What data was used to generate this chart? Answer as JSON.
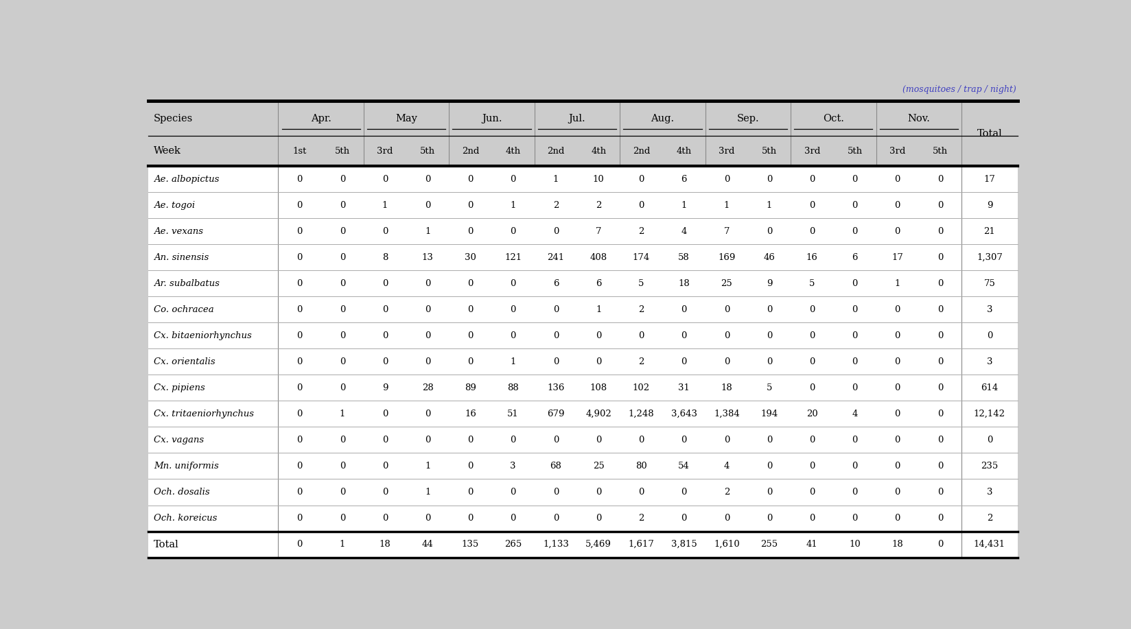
{
  "header_note": "(mosquitoes / trap / night)",
  "month_headers": [
    "Apr.",
    "May",
    "Jun.",
    "Jul.",
    "Aug.",
    "Sep.",
    "Oct.",
    "Nov."
  ],
  "week_headers": [
    "1st",
    "5th",
    "3rd",
    "5th",
    "2nd",
    "4th",
    "2nd",
    "4th",
    "2nd",
    "4th",
    "3rd",
    "5th",
    "3rd",
    "5th",
    "3rd",
    "5th"
  ],
  "species": [
    "Ae. albopictus",
    "Ae. togoi",
    "Ae. vexans",
    "An. sinensis",
    "Ar. subalbatus",
    "Co. ochracea",
    "Cx. bitaeniorhynchus",
    "Cx. orientalis",
    "Cx. pipiens",
    "Cx. tritaeniorhynchus",
    "Cx. vagans",
    "Mn. uniformis",
    "Och. dosalis",
    "Och. koreicus"
  ],
  "data_display": [
    [
      "0",
      "0",
      "0",
      "0",
      "0",
      "0",
      "1",
      "10",
      "0",
      "6",
      "0",
      "0",
      "0",
      "0",
      "0",
      "0",
      "17"
    ],
    [
      "0",
      "0",
      "1",
      "0",
      "0",
      "1",
      "2",
      "2",
      "0",
      "1",
      "1",
      "1",
      "0",
      "0",
      "0",
      "0",
      "9"
    ],
    [
      "0",
      "0",
      "0",
      "1",
      "0",
      "0",
      "0",
      "7",
      "2",
      "4",
      "7",
      "0",
      "0",
      "0",
      "0",
      "0",
      "21"
    ],
    [
      "0",
      "0",
      "8",
      "13",
      "30",
      "121",
      "241",
      "408",
      "174",
      "58",
      "169",
      "46",
      "16",
      "6",
      "17",
      "0",
      "1,307"
    ],
    [
      "0",
      "0",
      "0",
      "0",
      "0",
      "0",
      "6",
      "6",
      "5",
      "18",
      "25",
      "9",
      "5",
      "0",
      "1",
      "0",
      "75"
    ],
    [
      "0",
      "0",
      "0",
      "0",
      "0",
      "0",
      "0",
      "1",
      "2",
      "0",
      "0",
      "0",
      "0",
      "0",
      "0",
      "0",
      "3"
    ],
    [
      "0",
      "0",
      "0",
      "0",
      "0",
      "0",
      "0",
      "0",
      "0",
      "0",
      "0",
      "0",
      "0",
      "0",
      "0",
      "0",
      "0"
    ],
    [
      "0",
      "0",
      "0",
      "0",
      "0",
      "1",
      "0",
      "0",
      "2",
      "0",
      "0",
      "0",
      "0",
      "0",
      "0",
      "0",
      "3"
    ],
    [
      "0",
      "0",
      "9",
      "28",
      "89",
      "88",
      "136",
      "108",
      "102",
      "31",
      "18",
      "5",
      "0",
      "0",
      "0",
      "0",
      "614"
    ],
    [
      "0",
      "1",
      "0",
      "0",
      "16",
      "51",
      "679",
      "4,902",
      "1,248",
      "3,643",
      "1,384",
      "194",
      "20",
      "4",
      "0",
      "0",
      "12,142"
    ],
    [
      "0",
      "0",
      "0",
      "0",
      "0",
      "0",
      "0",
      "0",
      "0",
      "0",
      "0",
      "0",
      "0",
      "0",
      "0",
      "0",
      "0"
    ],
    [
      "0",
      "0",
      "0",
      "1",
      "0",
      "3",
      "68",
      "25",
      "80",
      "54",
      "4",
      "0",
      "0",
      "0",
      "0",
      "0",
      "235"
    ],
    [
      "0",
      "0",
      "0",
      "1",
      "0",
      "0",
      "0",
      "0",
      "0",
      "0",
      "2",
      "0",
      "0",
      "0",
      "0",
      "0",
      "3"
    ],
    [
      "0",
      "0",
      "0",
      "0",
      "0",
      "0",
      "0",
      "0",
      "2",
      "0",
      "0",
      "0",
      "0",
      "0",
      "0",
      "0",
      "2"
    ]
  ],
  "totals_display": [
    "0",
    "1",
    "18",
    "44",
    "135",
    "265",
    "1,133",
    "5,469",
    "1,617",
    "3,815",
    "1,610",
    "255",
    "41",
    "10",
    "18",
    "0",
    "14,431"
  ],
  "bg_color": "#cccccc",
  "row_bg_light": "#d4d4d4",
  "row_bg_white": "#ffffff",
  "note_color": "#4040c0",
  "header_text_color": "#000000",
  "data_text_color": "#000000"
}
